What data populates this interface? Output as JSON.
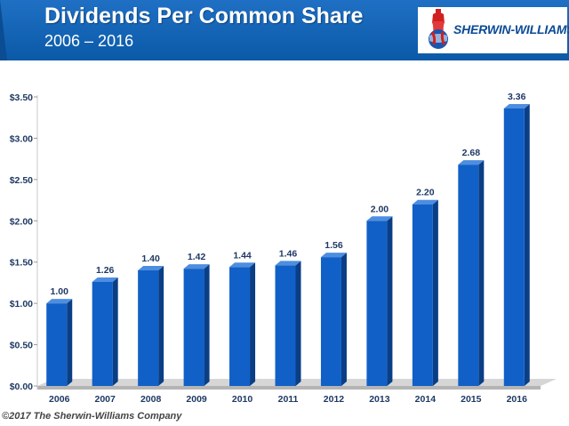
{
  "header": {
    "title": "Dividends Per Common Share",
    "subtitle": "2006 – 2016",
    "logo_text": "SHERWIN-WILLIAMS."
  },
  "footer": {
    "copyright": "©2017 The Sherwin-Williams Company"
  },
  "colors": {
    "header_blue": "#0b5aa8",
    "bar_front": "#1160c7",
    "bar_side": "#0a3e85",
    "bar_top": "#4d8ee0",
    "label_color": "#1f3864",
    "floor": "#b4b4b4"
  },
  "chart_data": {
    "type": "bar",
    "title": "Dividends Per Common Share",
    "subtitle": "2006 – 2016",
    "xlabel": "",
    "ylabel": "",
    "categories": [
      "2006",
      "2007",
      "2008",
      "2009",
      "2010",
      "2011",
      "2012",
      "2013",
      "2014",
      "2015",
      "2016"
    ],
    "values": [
      1.0,
      1.26,
      1.4,
      1.42,
      1.44,
      1.46,
      1.56,
      2.0,
      2.2,
      2.68,
      3.36
    ],
    "data_labels": [
      "1.00",
      "1.26",
      "1.40",
      "1.42",
      "1.44",
      "1.46",
      "1.56",
      "2.00",
      "2.20",
      "2.68",
      "3.36"
    ],
    "ylim": [
      0,
      3.5
    ],
    "yticks": [
      0,
      0.5,
      1.0,
      1.5,
      2.0,
      2.5,
      3.0,
      3.5
    ],
    "ytick_labels": [
      "$0.00",
      "$0.50",
      "$1.00",
      "$1.50",
      "$2.00",
      "$2.50",
      "$3.00",
      "$3.50"
    ],
    "grid": false,
    "legend": "none"
  }
}
